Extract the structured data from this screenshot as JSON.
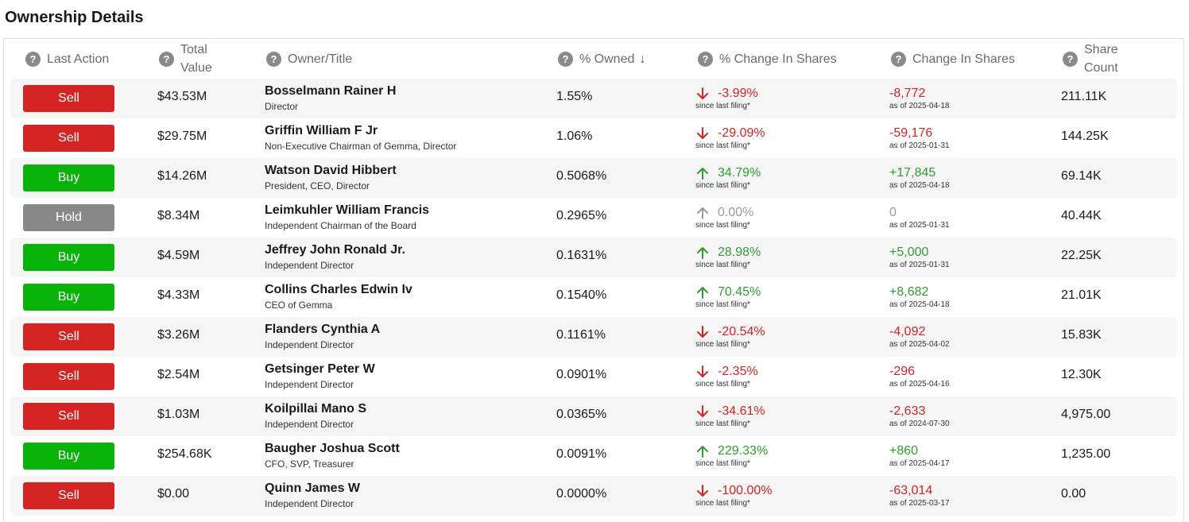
{
  "page_title": "Ownership Details",
  "columns": {
    "last_action": "Last Action",
    "total_value": "Total Value",
    "owner_title": "Owner/Title",
    "pct_owned": "% Owned",
    "pct_change": "% Change In Shares",
    "change_shares": "Change In Shares",
    "share_count": "Share Count"
  },
  "colors": {
    "sell": "#d42424",
    "buy": "#0ab30a",
    "hold": "#888888",
    "negative": "#d42424",
    "positive": "#2e9e2e",
    "neutral": "#9a9a9a"
  },
  "rows": [
    {
      "action": "Sell",
      "value": "$43.53M",
      "name": "Bosselmann Rainer H",
      "title": "Director",
      "owned": "1.55%",
      "pct_change": "-3.99%",
      "pct_sub": "since last filing*",
      "change": "-8,772",
      "change_date": "as of 2025-04-18",
      "count": "211.11K",
      "trend": "down"
    },
    {
      "action": "Sell",
      "value": "$29.75M",
      "name": "Griffin William F Jr",
      "title": "Non-Executive Chairman of Gemma, Director",
      "owned": "1.06%",
      "pct_change": "-29.09%",
      "pct_sub": "since last filing*",
      "change": "-59,176",
      "change_date": "as of 2025-01-31",
      "count": "144.25K",
      "trend": "down"
    },
    {
      "action": "Buy",
      "value": "$14.26M",
      "name": "Watson David Hibbert",
      "title": "President, CEO, Director",
      "owned": "0.5068%",
      "pct_change": "34.79%",
      "pct_sub": "since last filing*",
      "change": "+17,845",
      "change_date": "as of 2025-04-18",
      "count": "69.14K",
      "trend": "up"
    },
    {
      "action": "Hold",
      "value": "$8.34M",
      "name": "Leimkuhler William Francis",
      "title": "Independent Chairman of the Board",
      "owned": "0.2965%",
      "pct_change": "0.00%",
      "pct_sub": "since last filing*",
      "change": "0",
      "change_date": "as of 2025-01-31",
      "count": "40.44K",
      "trend": "flat"
    },
    {
      "action": "Buy",
      "value": "$4.59M",
      "name": "Jeffrey John Ronald Jr.",
      "title": "Independent Director",
      "owned": "0.1631%",
      "pct_change": "28.98%",
      "pct_sub": "since last filing*",
      "change": "+5,000",
      "change_date": "as of 2025-01-31",
      "count": "22.25K",
      "trend": "up"
    },
    {
      "action": "Buy",
      "value": "$4.33M",
      "name": "Collins Charles Edwin Iv",
      "title": "CEO of Gemma",
      "owned": "0.1540%",
      "pct_change": "70.45%",
      "pct_sub": "since last filing*",
      "change": "+8,682",
      "change_date": "as of 2025-04-18",
      "count": "21.01K",
      "trend": "up"
    },
    {
      "action": "Sell",
      "value": "$3.26M",
      "name": "Flanders Cynthia A",
      "title": "Independent Director",
      "owned": "0.1161%",
      "pct_change": "-20.54%",
      "pct_sub": "since last filing*",
      "change": "-4,092",
      "change_date": "as of 2025-04-02",
      "count": "15.83K",
      "trend": "down"
    },
    {
      "action": "Sell",
      "value": "$2.54M",
      "name": "Getsinger Peter W",
      "title": "Independent Director",
      "owned": "0.0901%",
      "pct_change": "-2.35%",
      "pct_sub": "since last filing*",
      "change": "-296",
      "change_date": "as of 2025-04-16",
      "count": "12.30K",
      "trend": "down"
    },
    {
      "action": "Sell",
      "value": "$1.03M",
      "name": "Koilpillai Mano S",
      "title": "Independent Director",
      "owned": "0.0365%",
      "pct_change": "-34.61%",
      "pct_sub": "since last filing*",
      "change": "-2,633",
      "change_date": "as of 2024-07-30",
      "count": "4,975.00",
      "trend": "down"
    },
    {
      "action": "Buy",
      "value": "$254.68K",
      "name": "Baugher Joshua Scott",
      "title": "CFO, SVP, Treasurer",
      "owned": "0.0091%",
      "pct_change": "229.33%",
      "pct_sub": "since last filing*",
      "change": "+860",
      "change_date": "as of 2025-04-17",
      "count": "1,235.00",
      "trend": "up"
    },
    {
      "action": "Sell",
      "value": "$0.00",
      "name": "Quinn James W",
      "title": "Independent Director",
      "owned": "0.0000%",
      "pct_change": "-100.00%",
      "pct_sub": "since last filing*",
      "change": "-63,014",
      "change_date": "as of 2025-03-17",
      "count": "0.00",
      "trend": "down"
    }
  ]
}
